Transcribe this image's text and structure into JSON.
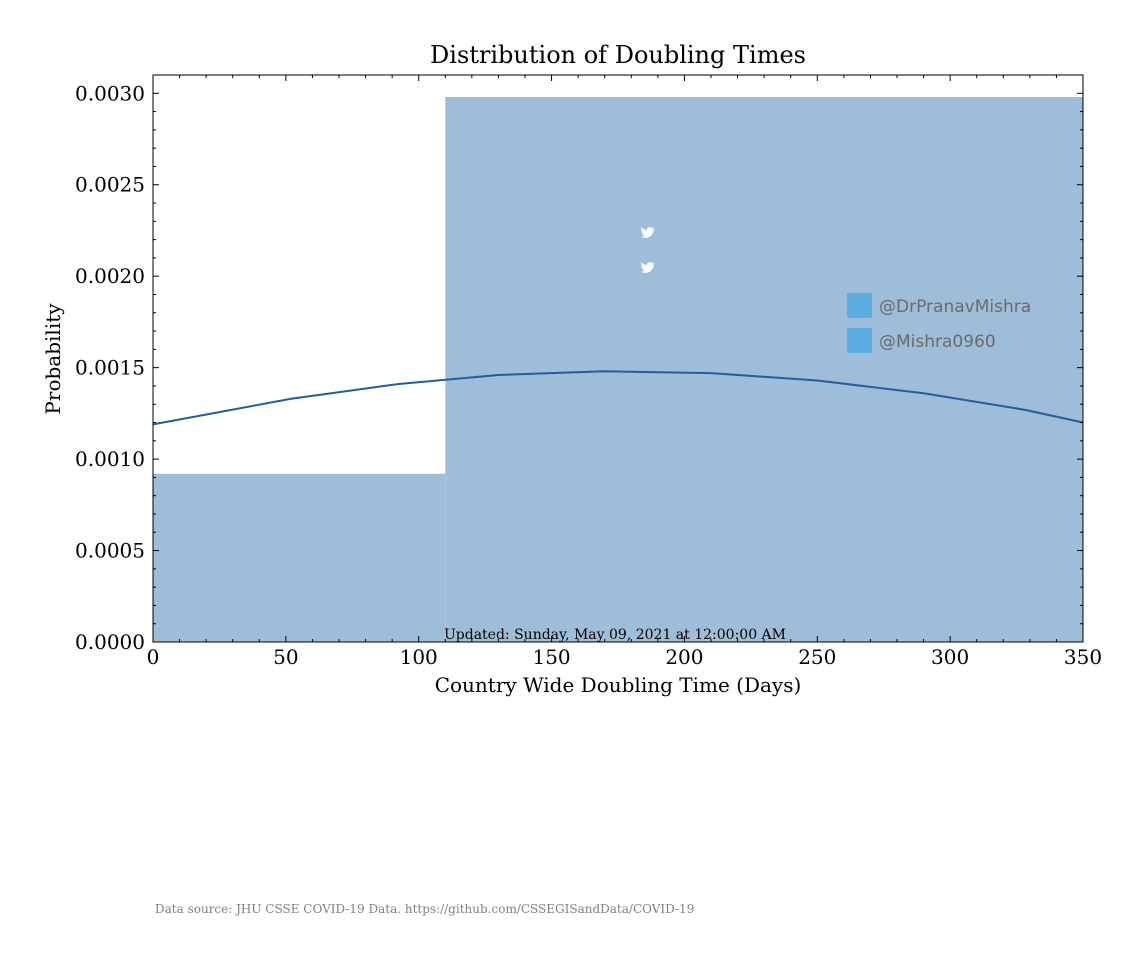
{
  "chart_data": {
    "type": "histogram",
    "title": "Distribution of Doubling Times",
    "xlabel": "Country Wide Doubling Time (Days)",
    "ylabel": "Probability",
    "xlim": [
      0,
      350
    ],
    "ylim": [
      0,
      0.0031
    ],
    "xticks": [
      0,
      50,
      100,
      150,
      200,
      250,
      300,
      350
    ],
    "xtick_labels": [
      "0",
      "50",
      "100",
      "150",
      "200",
      "250",
      "300",
      "350"
    ],
    "yticks": [
      0,
      0.0005,
      0.001,
      0.0015,
      0.002,
      0.0025,
      0.003
    ],
    "ytick_labels": [
      "0.0000",
      "0.0005",
      "0.0010",
      "0.0015",
      "0.0020",
      "0.0025",
      "0.0030"
    ],
    "bins": [
      {
        "x0": 0,
        "x1": 110,
        "value": 0.00092
      },
      {
        "x0": 110,
        "x1": 350,
        "value": 0.00298
      }
    ],
    "density_curve": {
      "x": [
        0,
        15,
        52,
        92,
        130,
        170,
        210,
        250,
        290,
        328,
        350
      ],
      "y": [
        0.00119,
        0.00123,
        0.00133,
        0.00141,
        0.00146,
        0.00148,
        0.00147,
        0.00143,
        0.00136,
        0.00127,
        0.0012
      ]
    },
    "bar_color": "#9dbdd9",
    "curve_color": "#1f5f9f",
    "annotation": "Updated: Sunday, May 09, 2021 at 12:00:00 AM",
    "grid": false
  },
  "handles": [
    {
      "icon": "twitter-icon",
      "text": "@DrPranavMishra"
    },
    {
      "icon": "twitter-icon",
      "text": "@Mishra0960"
    }
  ],
  "handle_icon_color": "#5aade0",
  "footer": {
    "source": "Data source: JHU CSSE COVID-19 Data. https://github.com/CSSEGISandData/COVID-19"
  }
}
